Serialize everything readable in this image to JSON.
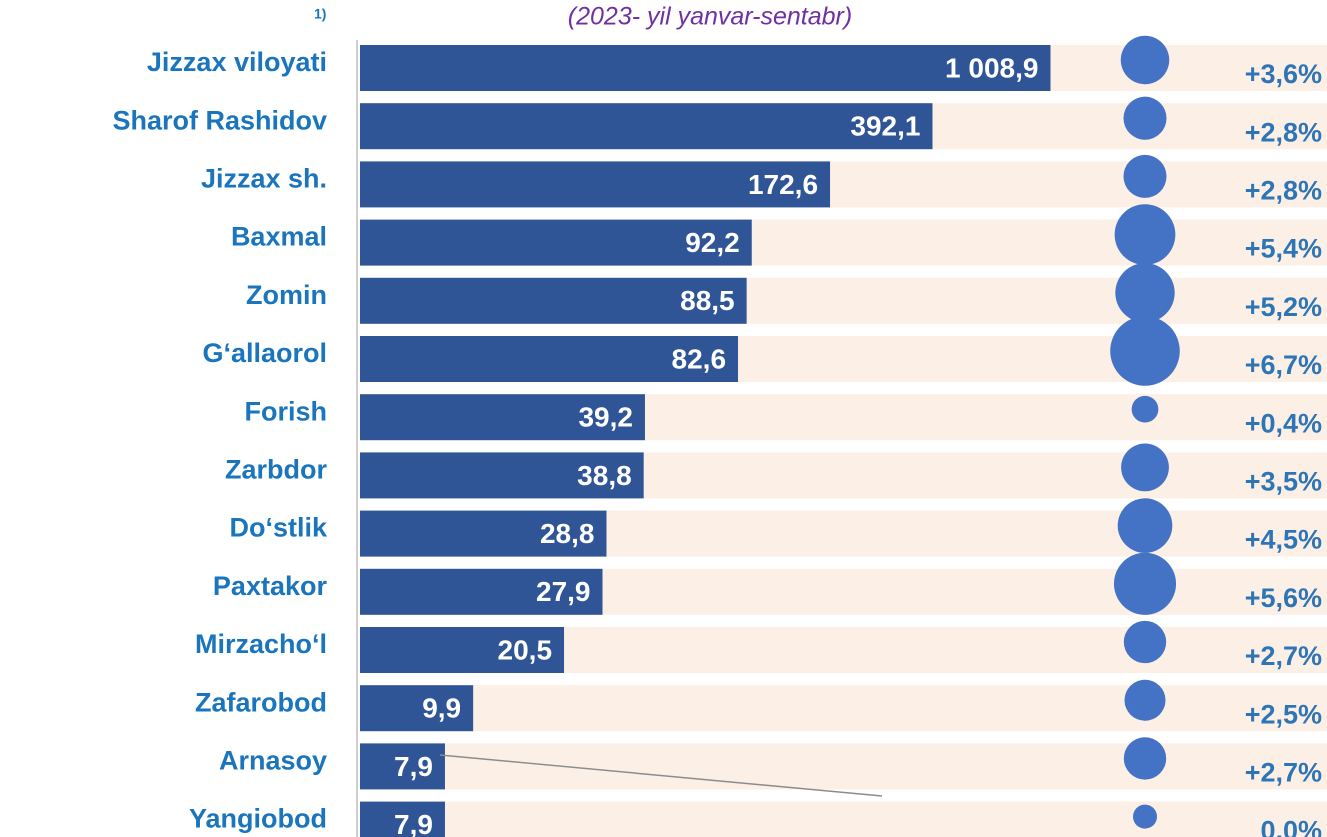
{
  "chart_data": {
    "type": "bar",
    "orientation": "horizontal",
    "note": "1)",
    "subtitle": "(2023- yil yanvar-sentabr)",
    "categories": [
      "Jizzax viloyati",
      "Sharof Rashidov",
      "Jizzax sh.",
      "Baxmal",
      "Zomin",
      "G‘allaorol",
      "Forish",
      "Zarbdor",
      "Do‘stlik",
      "Paxtakor",
      "Mirzacho‘l",
      "Zafarobod",
      "Arnasoy",
      "Yangiobod"
    ],
    "values": [
      1008.9,
      392.1,
      172.6,
      92.2,
      88.5,
      82.6,
      39.2,
      38.8,
      28.8,
      27.9,
      20.5,
      9.9,
      7.9,
      7.9
    ],
    "value_labels": [
      "1 008,9",
      "392,1",
      "172,6",
      "92,2",
      "88,5",
      "82,6",
      "39,2",
      "38,8",
      "28,8",
      "27,9",
      "20,5",
      "9,9",
      "7,9",
      "7,9"
    ],
    "color": "#2f5597",
    "log_scale": true,
    "xlim": [
      4,
      1500
    ],
    "growth": {
      "type": "bubble",
      "color": "#4472c4",
      "values": [
        3.6,
        2.8,
        2.8,
        5.4,
        5.2,
        6.7,
        0.4,
        3.5,
        4.5,
        5.6,
        2.7,
        2.5,
        2.7,
        0.0
      ],
      "value_labels": [
        "+3,6%",
        "+2,8%",
        "+2,8%",
        "+5,4%",
        "+5,2%",
        "+6,7%",
        "+0,4%",
        "+3,5%",
        "+4,5%",
        "+5,6%",
        "+2,7%",
        "+2,5%",
        "+2,7%",
        "0,0%"
      ]
    }
  }
}
